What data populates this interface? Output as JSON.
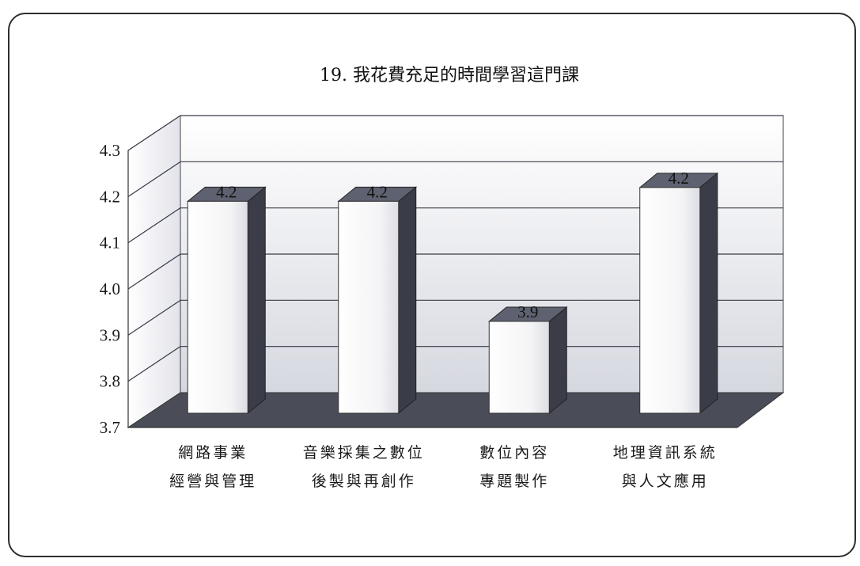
{
  "chart_data": {
    "type": "bar",
    "title": "19. 我花費充足的時間學習這門課",
    "categories": [
      [
        "網路事業",
        "經營與管理"
      ],
      [
        "音樂採集之數位",
        "後製與再創作"
      ],
      [
        "數位內容",
        "專題製作"
      ],
      [
        "地理資訊系統",
        "與人文應用"
      ]
    ],
    "values": [
      4.2,
      4.2,
      3.94,
      4.23
    ],
    "data_labels": [
      "4.2",
      "4.2",
      "3.9",
      "4.2"
    ],
    "ylim": [
      3.7,
      4.3
    ],
    "yticks": [
      "3.7",
      "3.8",
      "3.9",
      "4.0",
      "4.1",
      "4.2",
      "4.3"
    ],
    "grid": true,
    "legend": "none",
    "style": "3d-column",
    "colors": {
      "bar_front": "#f4f4f6",
      "bar_side": "#3a3d47",
      "bar_top": "#5e6270",
      "floor": "#4a4d58",
      "gridline": "#3a3a46"
    }
  }
}
